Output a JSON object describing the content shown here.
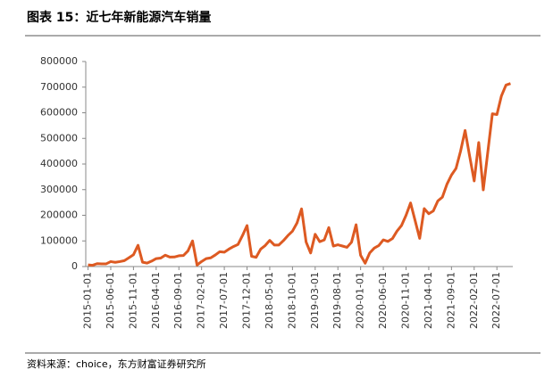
{
  "chart_data": {
    "type": "line",
    "title": "图表 15：近七年新能源汽车销量",
    "source": "资料来源：choice，东方财富证券研究所",
    "categories": [
      "2015-01-01",
      null,
      null,
      null,
      null,
      "2015-06-01",
      null,
      null,
      null,
      null,
      "2015-11-01",
      null,
      null,
      null,
      null,
      "2016-04-01",
      null,
      null,
      null,
      null,
      "2016-09-01",
      null,
      null,
      null,
      null,
      "2017-02-01",
      null,
      null,
      null,
      null,
      "2017-07-01",
      null,
      null,
      null,
      null,
      "2017-12-01",
      null,
      null,
      null,
      null,
      "2018-05-01",
      null,
      null,
      null,
      null,
      "2018-10-01",
      null,
      null,
      null,
      null,
      "2019-03-01",
      null,
      null,
      null,
      null,
      "2019-08-01",
      null,
      null,
      null,
      null,
      "2020-01-01",
      null,
      null,
      null,
      null,
      "2020-06-01",
      null,
      null,
      null,
      null,
      "2020-11-01",
      null,
      null,
      null,
      null,
      "2021-04-01",
      null,
      null,
      null,
      null,
      "2021-09-01",
      null,
      null,
      null,
      null,
      "2022-02-01",
      null,
      null,
      null,
      null,
      "2022-07-01",
      null,
      null,
      null
    ],
    "series": [
      {
        "name": "新能源汽车销量",
        "color": "#dd5a22",
        "values": [
          6600,
          4900,
          11400,
          10400,
          10600,
          19400,
          16500,
          19400,
          23000,
          34300,
          46000,
          83000,
          17000,
          13500,
          21200,
          31000,
          33000,
          44400,
          36800,
          37200,
          42000,
          43000,
          61200,
          100000,
          5700,
          19700,
          31000,
          34000,
          45000,
          58000,
          56000,
          68000,
          78000,
          86000,
          121000,
          160000,
          40000,
          36000,
          68000,
          82000,
          102000,
          84000,
          84000,
          101000,
          121000,
          138000,
          170000,
          225000,
          96000,
          53000,
          126000,
          97000,
          104000,
          152000,
          80000,
          85000,
          80000,
          75000,
          95000,
          163000,
          44000,
          13000,
          53000,
          72000,
          82000,
          104000,
          98000,
          109000,
          138000,
          160000,
          200000,
          248000,
          179000,
          110000,
          226000,
          206000,
          217000,
          256000,
          271000,
          321000,
          357000,
          383000,
          450000,
          531000,
          431000,
          334000,
          484000,
          299000,
          447000,
          596000,
          593000,
          666000,
          708000,
          714000
        ]
      }
    ],
    "ylim": [
      0,
      800000
    ],
    "yticks": [
      0,
      100000,
      200000,
      300000,
      400000,
      500000,
      600000,
      700000,
      800000
    ],
    "grid": false
  }
}
